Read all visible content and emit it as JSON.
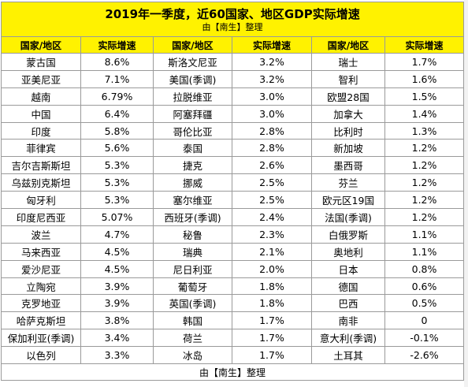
{
  "title": "2019年一季度，近60国家、地区GDP实际增速",
  "subtitle": "由【南生】整理",
  "footer": "由【南生】整理",
  "headers": [
    "国家/地区",
    "实际增速",
    "国家/地区",
    "实际增速",
    "国家/地区",
    "实际增速"
  ],
  "rows": [
    [
      "蒙古国",
      "8.6%",
      "斯洛文尼亚",
      "3.2%",
      "瑞士",
      "1.7%"
    ],
    [
      "亚美尼亚",
      "7.1%",
      "美国(季调)",
      "3.2%",
      "智利",
      "1.6%"
    ],
    [
      "越南",
      "6.79%",
      "拉脱维亚",
      "3.0%",
      "欧盟28国",
      "1.5%"
    ],
    [
      "中国",
      "6.4%",
      "阿塞拜疆",
      "3.0%",
      "加拿大",
      "1.4%"
    ],
    [
      "印度",
      "5.8%",
      "哥伦比亚",
      "2.8%",
      "比利时",
      "1.3%"
    ],
    [
      "菲律宾",
      "5.6%",
      "泰国",
      "2.8%",
      "新加坡",
      "1.2%"
    ],
    [
      "吉尔吉斯斯坦",
      "5.3%",
      "捷克",
      "2.6%",
      "墨西哥",
      "1.2%"
    ],
    [
      "乌兹别克斯坦",
      "5.3%",
      "挪威",
      "2.5%",
      "芬兰",
      "1.2%"
    ],
    [
      "匈牙利",
      "5.3%",
      "塞尔维亚",
      "2.5%",
      "欧元区19国",
      "1.2%"
    ],
    [
      "印度尼西亚",
      "5.07%",
      "西班牙(季调)",
      "2.4%",
      "法国(季调)",
      "1.2%"
    ],
    [
      "波兰",
      "4.7%",
      "秘鲁",
      "2.3%",
      "白俄罗斯",
      "1.1%"
    ],
    [
      "马来西亚",
      "4.5%",
      "瑞典",
      "2.1%",
      "奥地利",
      "1.1%"
    ],
    [
      "爱沙尼亚",
      "4.5%",
      "尼日利亚",
      "2.0%",
      "日本",
      "0.8%"
    ],
    [
      "立陶宛",
      "3.9%",
      "葡萄牙",
      "1.8%",
      "德国",
      "0.6%"
    ],
    [
      "克罗地亚",
      "3.9%",
      "英国(季调)",
      "1.8%",
      "巴西",
      "0.5%"
    ],
    [
      "哈萨克斯坦",
      "3.8%",
      "韩国",
      "1.7%",
      "南非",
      "0"
    ],
    [
      "保加利亚(季调)",
      "3.4%",
      "荷兰",
      "1.7%",
      "意大利(季调)",
      "-0.1%"
    ],
    [
      "以色列",
      "3.3%",
      "冰岛",
      "1.7%",
      "土耳其",
      "-2.6%"
    ]
  ]
}
